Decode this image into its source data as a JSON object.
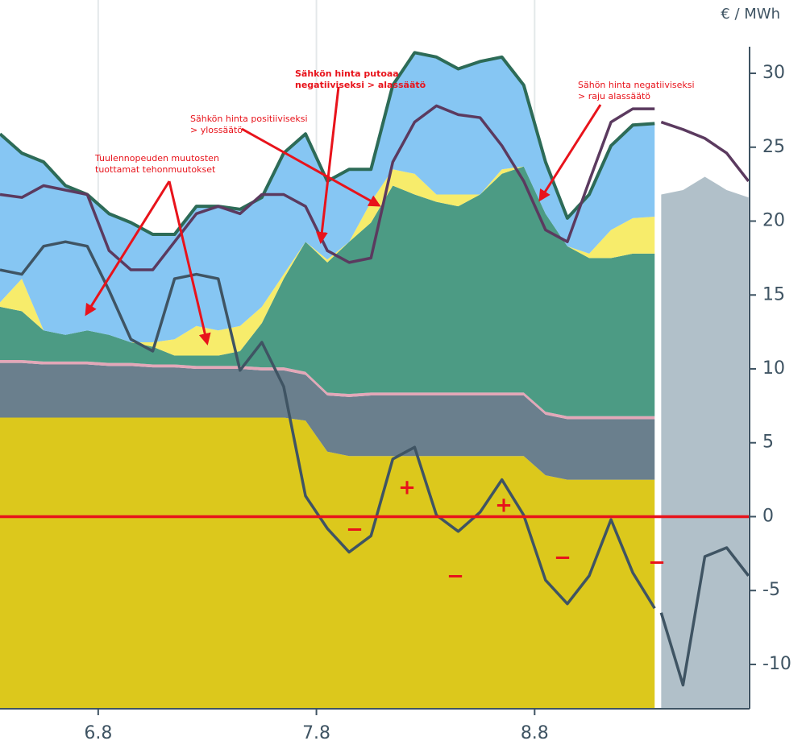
{
  "chart_data": {
    "type": "area",
    "unit_label": "€ / MWh",
    "x": [
      5.55,
      5.65,
      5.75,
      5.85,
      5.95,
      6.05,
      6.15,
      6.25,
      6.35,
      6.45,
      6.55,
      6.65,
      6.75,
      6.85,
      6.95,
      7.05,
      7.15,
      7.25,
      7.35,
      7.45,
      7.55,
      7.65,
      7.75,
      7.85,
      7.95,
      8.05,
      8.15,
      8.25,
      8.35,
      8.45,
      8.55
    ],
    "xlim": [
      5.55,
      8.985
    ],
    "xticks": [
      {
        "value": 6,
        "label": "6.8"
      },
      {
        "value": 7,
        "label": "7.8"
      },
      {
        "value": 8,
        "label": "8.8"
      }
    ],
    "ylim": [
      -13,
      31.8
    ],
    "yticks": [
      30,
      25,
      20,
      15,
      10,
      5,
      0,
      -5,
      -10
    ],
    "grid": "x",
    "zero_line": {
      "value": 0,
      "color": "#e8131b"
    },
    "series": [
      {
        "type": "area",
        "stack": true,
        "color": "#dcc81c",
        "values": [
          19.7,
          19.7,
          19.7,
          19.7,
          19.7,
          19.7,
          19.7,
          19.7,
          19.7,
          19.7,
          19.7,
          19.7,
          19.7,
          19.7,
          19.5,
          17.4,
          17.1,
          17.1,
          17.1,
          17.1,
          17.1,
          17.1,
          17.1,
          17.1,
          17.1,
          15.8,
          15.5,
          15.5,
          15.5,
          15.5,
          15.5
        ]
      },
      {
        "type": "area",
        "stack": true,
        "color": "#6a7f8d",
        "values": [
          3.7,
          3.7,
          3.6,
          3.6,
          3.6,
          3.5,
          3.5,
          3.4,
          3.4,
          3.3,
          3.3,
          3.3,
          3.2,
          3.2,
          3.1,
          3.8,
          4.0,
          4.1,
          4.1,
          4.1,
          4.1,
          4.1,
          4.1,
          4.1,
          4.1,
          4.1,
          4.1,
          4.1,
          4.1,
          4.1,
          4.1
        ]
      },
      {
        "type": "area",
        "stack": true,
        "color": "#e3a7b8",
        "values": [
          0.2,
          0.2,
          0.2,
          0.2,
          0.2,
          0.2,
          0.2,
          0.2,
          0.2,
          0.2,
          0.2,
          0.2,
          0.2,
          0.2,
          0.2,
          0.2,
          0.2,
          0.2,
          0.2,
          0.2,
          0.2,
          0.2,
          0.2,
          0.2,
          0.2,
          0.2,
          0.2,
          0.2,
          0.2,
          0.2,
          0.2
        ]
      },
      {
        "type": "area",
        "stack": true,
        "color": "#4c9b84",
        "values": [
          3.6,
          3.3,
          2.1,
          1.8,
          2.1,
          1.9,
          1.4,
          1.2,
          0.6,
          0.7,
          0.7,
          1.0,
          3.0,
          6.0,
          8.8,
          8.8,
          10.3,
          11.5,
          14.0,
          13.4,
          12.9,
          12.6,
          13.4,
          14.8,
          15.3,
          13.4,
          11.5,
          10.7,
          10.7,
          11.0,
          11.0
        ]
      },
      {
        "type": "area",
        "stack": true,
        "color": "#f7ec6b",
        "values": [
          0.3,
          2.2,
          0,
          0,
          0,
          0,
          0,
          0.3,
          1.1,
          2.0,
          1.7,
          1.7,
          1.1,
          0.3,
          0,
          0.2,
          0,
          1.4,
          1.1,
          1.4,
          0.5,
          0.8,
          0,
          0.3,
          0,
          0,
          0,
          0.3,
          1.9,
          2.4,
          2.5
        ]
      },
      {
        "type": "area",
        "stack": true,
        "color": "#86c6f3",
        "line_color": "#2d6b57",
        "values": [
          11.4,
          8.5,
          11.4,
          10.1,
          9.2,
          8.2,
          8.1,
          7.3,
          7.1,
          8.1,
          8.4,
          7.9,
          7.4,
          8.2,
          7.3,
          5.3,
          4.9,
          2.2,
          5.7,
          8.2,
          9.3,
          8.5,
          9.0,
          7.6,
          5.5,
          3.5,
          1.9,
          4.0,
          5.7,
          6.3,
          6.3
        ]
      },
      {
        "type": "line",
        "color": "#5b3a5f",
        "values": [
          21.8,
          21.6,
          22.4,
          22.1,
          21.8,
          18.0,
          16.7,
          16.7,
          18.6,
          20.5,
          21.0,
          20.5,
          21.8,
          21.8,
          21.0,
          18.0,
          17.2,
          17.5,
          24.0,
          26.7,
          27.8,
          27.2,
          27.0,
          25.1,
          22.7,
          19.4,
          18.6,
          22.7,
          26.7,
          27.6,
          27.6
        ]
      },
      {
        "type": "line",
        "color": "#3f5463",
        "values": [
          16.7,
          16.4,
          18.3,
          18.6,
          18.3,
          15.3,
          12.0,
          11.2,
          16.1,
          16.4,
          16.1,
          9.9,
          11.8,
          8.8,
          1.4,
          -0.8,
          -2.4,
          -1.3,
          3.9,
          4.7,
          0.1,
          -1.0,
          0.3,
          2.5,
          0.1,
          -4.3,
          -5.9,
          -4.0,
          -0.2,
          -3.8,
          -6.2
        ]
      },
      {
        "type": "area",
        "stack": false,
        "color": "#b1c0c9",
        "x": [
          8.58,
          8.68,
          8.78,
          8.88,
          8.98
        ],
        "values": [
          21.8,
          22.1,
          23.0,
          22.1,
          21.6
        ]
      },
      {
        "type": "line",
        "color": "#5b3a5f",
        "x": [
          8.58,
          8.68,
          8.78,
          8.88,
          8.98
        ],
        "values": [
          26.7,
          26.2,
          25.6,
          24.6,
          22.7
        ]
      },
      {
        "type": "line",
        "color": "#3f5463",
        "x": [
          8.58,
          8.68,
          8.78,
          8.88,
          8.98
        ],
        "values": [
          -6.5,
          -11.4,
          -2.7,
          -2.1,
          -4.0
        ]
      }
    ],
    "annotations": [
      {
        "lines": [
          "Tuulennopeuden muutosten",
          "tuottamat tehonmuutokset"
        ],
        "bold": false
      },
      {
        "lines": [
          "Sähkön hinta positiiviseksi",
          "> ylossäätö"
        ],
        "bold": false
      },
      {
        "lines": [
          "Sähkön hinta putoaa",
          "negatiiviseksi > alassäätö"
        ],
        "bold": true
      },
      {
        "lines": [
          "Sähön hinta negatiiviseksi",
          "> raju alassäätö"
        ],
        "bold": false
      }
    ],
    "signs": [
      "−",
      "+",
      "−",
      "+",
      "−",
      "−"
    ]
  }
}
